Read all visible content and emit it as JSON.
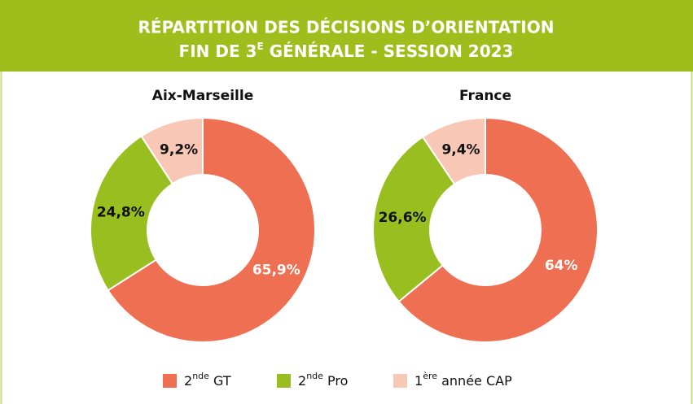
{
  "title_line1": "RÉPARTITION DES DÉCISIONS D’ORIENTATION",
  "title_line2": {
    "before": "FIN DE 3",
    "sup": "E",
    "after": " GÉNÉRALE - SESSION 2023"
  },
  "legend": [
    {
      "main": "2",
      "sup": "nde",
      "rest": " GT"
    },
    {
      "main": "2",
      "sup": "nde",
      "rest": " Pro"
    },
    {
      "main": "1",
      "sup": "ère",
      "rest": " année CAP"
    }
  ],
  "chart_data": [
    {
      "type": "pie",
      "title": "Aix-Marseille",
      "values": [
        65.9,
        24.8,
        9.2
      ],
      "value_labels": [
        "65,9%",
        "24,8%",
        "9,2%"
      ],
      "colors": [
        "#ee6f51",
        "#98bf1f",
        "#f9c7b5"
      ]
    },
    {
      "type": "pie",
      "title": "France",
      "values": [
        64,
        26.6,
        9.4
      ],
      "value_labels": [
        "64%",
        "26,6%",
        "9,4%"
      ],
      "colors": [
        "#ee6f51",
        "#98bf1f",
        "#f9c7b5"
      ]
    }
  ]
}
